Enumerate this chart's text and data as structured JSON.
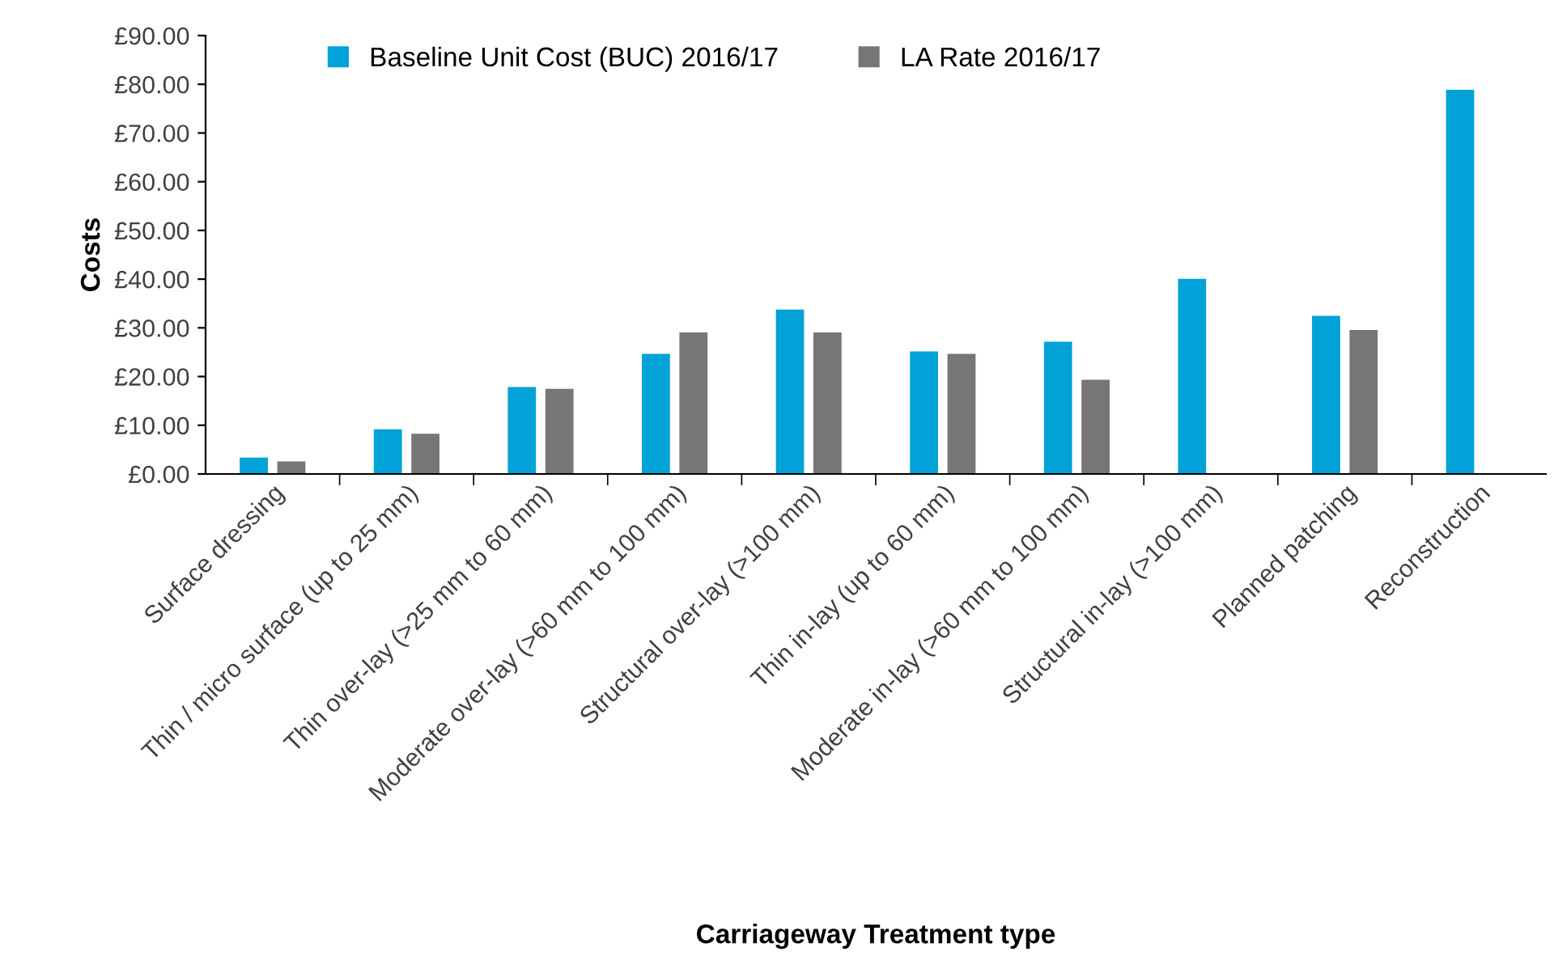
{
  "chart_data": {
    "type": "bar",
    "xlabel": "Carriageway Treatment type",
    "ylabel": "Costs",
    "categories": [
      "Surface dressing",
      "Thin / micro surface (up to 25 mm)",
      "Thin over-lay (>25 mm to 60 mm)",
      "Moderate over-lay (>60 mm to 100 mm)",
      "Structural over-lay (>100 mm)",
      "Thin in-lay (up to 60 mm)",
      "Moderate in-lay (>60 mm to 100 mm)",
      "Structural in-lay (>100 mm)",
      "Planned patching",
      "Reconstruction"
    ],
    "series": [
      {
        "name": "Baseline Unit Cost (BUC) 2016/17",
        "color": "#00a2d8",
        "values": [
          3.5,
          9.3,
          18.0,
          24.8,
          33.9,
          25.3,
          27.3,
          40.2,
          32.6,
          79.0
        ]
      },
      {
        "name": "LA Rate 2016/17",
        "color": "#767676",
        "values": [
          2.7,
          8.4,
          17.6,
          29.2,
          29.2,
          24.8,
          19.5,
          null,
          29.7,
          null
        ]
      }
    ],
    "ylim": [
      0,
      90
    ],
    "yticks": [
      {
        "value": 0,
        "label": "£0.00"
      },
      {
        "value": 10,
        "label": "£10.00"
      },
      {
        "value": 20,
        "label": "£20.00"
      },
      {
        "value": 30,
        "label": "£30.00"
      },
      {
        "value": 40,
        "label": "£40.00"
      },
      {
        "value": 50,
        "label": "£50.00"
      },
      {
        "value": 60,
        "label": "£60.00"
      },
      {
        "value": 70,
        "label": "£70.00"
      },
      {
        "value": 80,
        "label": "£80.00"
      },
      {
        "value": 90,
        "label": "£90.00"
      }
    ],
    "grid": false,
    "legend": "top"
  }
}
